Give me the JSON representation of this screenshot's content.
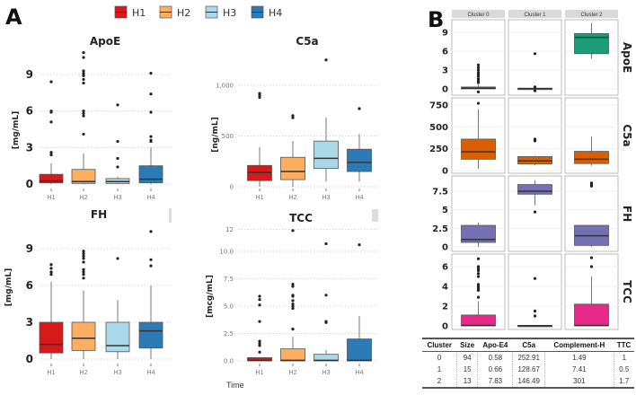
{
  "panel_labels": {
    "a": "A",
    "b": "B"
  },
  "legend": [
    {
      "label": "H1",
      "color": "#d7191c"
    },
    {
      "label": "H2",
      "color": "#fdae61"
    },
    {
      "label": "H3",
      "color": "#abd9e9"
    },
    {
      "label": "H4",
      "color": "#2c7bb6"
    }
  ],
  "x_axis_label": "Time",
  "chart_data": [
    {
      "type": "box",
      "title": "ApoE",
      "ylabel": "[mg/mL]",
      "categories": [
        "H1",
        "H2",
        "H3",
        "H4"
      ],
      "yticks": [
        0,
        3,
        6,
        9
      ],
      "ytick_labels": [
        "0",
        "3",
        "6",
        "9"
      ],
      "ylim": [
        -0.3,
        11
      ],
      "boxes": [
        {
          "q1": 0.1,
          "median": 0.25,
          "q3": 0.8,
          "low": 0,
          "high": 1.7,
          "outliers": [
            2.4,
            2.6,
            5.1,
            5.9,
            6.0,
            8.4
          ]
        },
        {
          "q1": 0.05,
          "median": 0.2,
          "q3": 1.2,
          "low": 0,
          "high": 2.5,
          "outliers": [
            4.1,
            5.6,
            5.8,
            6.0,
            8.3,
            8.6,
            8.9,
            9.1,
            9.3,
            10.4,
            10.8
          ]
        },
        {
          "q1": 0.05,
          "median": 0.2,
          "q3": 0.45,
          "low": 0,
          "high": 0.6,
          "outliers": [
            1.4,
            2.1,
            3.5,
            6.5
          ]
        },
        {
          "q1": 0.1,
          "median": 0.4,
          "q3": 1.5,
          "low": 0,
          "high": 3.0,
          "outliers": [
            3.5,
            3.6,
            3.9,
            5.9,
            7.4,
            9.1
          ]
        }
      ]
    },
    {
      "type": "box",
      "title": "C5a",
      "ylabel": "[ng/mL]",
      "categories": [
        "H1",
        "H2",
        "H3",
        "H4"
      ],
      "yticks": [
        0,
        500,
        1000
      ],
      "ytick_labels": [
        "0",
        "500",
        "1,000"
      ],
      "ylim": [
        -30,
        1300
      ],
      "boxes": [
        {
          "q1": 60,
          "median": 140,
          "q3": 210,
          "low": 0,
          "high": 390,
          "outliers": [
            880,
            900,
            920
          ]
        },
        {
          "q1": 70,
          "median": 150,
          "q3": 290,
          "low": 0,
          "high": 450,
          "outliers": [
            680,
            700
          ]
        },
        {
          "q1": 180,
          "median": 280,
          "q3": 450,
          "low": 50,
          "high": 680,
          "outliers": [
            1250
          ]
        },
        {
          "q1": 150,
          "median": 240,
          "q3": 370,
          "low": 50,
          "high": 520,
          "outliers": [
            770
          ]
        }
      ]
    },
    {
      "type": "box",
      "title": "FH",
      "ylabel": "[mg/mL]",
      "categories": [
        "H1",
        "H2",
        "H3",
        "H4"
      ],
      "yticks": [
        0,
        3,
        6,
        9
      ],
      "ytick_labels": [
        "0",
        "3",
        "6",
        "9"
      ],
      "ylim": [
        -0.3,
        11
      ],
      "boxes": [
        {
          "q1": 0.5,
          "median": 1.2,
          "q3": 3.0,
          "low": 0,
          "high": 6.3,
          "outliers": [
            6.9,
            7.1,
            7.4,
            7.7
          ]
        },
        {
          "q1": 0.7,
          "median": 1.7,
          "q3": 3.0,
          "low": 0,
          "high": 5.6,
          "outliers": [
            6.6,
            6.9,
            7.1,
            7.3,
            7.9,
            8.2,
            8.4,
            8.6,
            8.8
          ]
        },
        {
          "q1": 0.6,
          "median": 1.1,
          "q3": 3.0,
          "low": 0,
          "high": 4.8,
          "outliers": [
            8.2
          ]
        },
        {
          "q1": 0.9,
          "median": 2.3,
          "q3": 3.0,
          "low": 0,
          "high": 6.0,
          "outliers": [
            7.6,
            8.1,
            10.4
          ]
        }
      ]
    },
    {
      "type": "box",
      "title": "TCC",
      "ylabel": "[mcg/mL]",
      "categories": [
        "H1",
        "H2",
        "H3",
        "H4"
      ],
      "yticks": [
        0,
        2.5,
        5,
        7.5,
        10,
        12
      ],
      "ytick_labels": [
        "0.0",
        "2.5",
        "5.0",
        "7.5",
        "10.0",
        "12"
      ],
      "ylim": [
        -0.3,
        12.5
      ],
      "boxes": [
        {
          "q1": 0,
          "median": 0.05,
          "q3": 0.3,
          "low": 0,
          "high": 0.3,
          "outliers": [
            0.8,
            1.4,
            1.6,
            1.8,
            3.6,
            5.1,
            5.6,
            5.9
          ]
        },
        {
          "q1": 0,
          "median": 0.05,
          "q3": 1.1,
          "low": 0,
          "high": 2.2,
          "outliers": [
            2.9,
            4.8,
            5.0,
            5.2,
            5.5,
            5.9,
            6.0,
            6.8,
            7.0,
            11.9
          ]
        },
        {
          "q1": 0,
          "median": 0.05,
          "q3": 0.6,
          "low": 0,
          "high": 1.0,
          "outliers": [
            3.5,
            3.6,
            6.0,
            10.7
          ]
        },
        {
          "q1": 0,
          "median": 0.05,
          "q3": 2.0,
          "low": 0,
          "high": 4.1,
          "outliers": [
            10.6
          ]
        }
      ]
    },
    {
      "type": "box-facet",
      "columns": [
        "Cluster 0",
        "Cluster 1",
        "Cluster 2"
      ],
      "rows": [
        {
          "label": "ApoE",
          "color": "#1b9e77",
          "yticks": [
            0,
            3,
            6,
            9
          ],
          "ytick_labels": [
            "0",
            "3",
            "6",
            "9"
          ],
          "ylim": [
            -0.5,
            11
          ],
          "boxes": [
            {
              "q1": 0,
              "median": 0.1,
              "q3": 0.3,
              "low": 0,
              "high": 0.7,
              "outliers": [
                1.0,
                1.3,
                1.6,
                2.0,
                2.3,
                2.6,
                3.0,
                3.4,
                3.8
              ]
            },
            {
              "q1": 0,
              "median": 0.05,
              "q3": 0.1,
              "low": -0.2,
              "high": 0.2,
              "outliers": [
                -0.3,
                0.3,
                5.6
              ]
            },
            {
              "q1": 5.6,
              "median": 8.2,
              "q3": 8.8,
              "low": 4.8,
              "high": 10.5,
              "outliers": []
            }
          ]
        },
        {
          "label": "C5a",
          "color": "#d95f02",
          "yticks": [
            0,
            250,
            500,
            750
          ],
          "ytick_labels": [
            "0",
            "250",
            "500",
            "750"
          ],
          "ylim": [
            -20,
            950
          ],
          "boxes": [
            {
              "q1": 130,
              "median": 215,
              "q3": 360,
              "low": 20,
              "high": 700,
              "outliers": [
                770,
                900
              ]
            },
            {
              "q1": 75,
              "median": 110,
              "q3": 160,
              "low": 60,
              "high": 170,
              "outliers": [
                340,
                360
              ]
            },
            {
              "q1": 80,
              "median": 130,
              "q3": 220,
              "low": 55,
              "high": 390,
              "outliers": []
            }
          ]
        },
        {
          "label": "FH",
          "color": "#7570b3",
          "yticks": [
            0,
            2.5,
            5,
            7.5
          ],
          "ytick_labels": [
            "0",
            "2.5",
            "5",
            "7.5"
          ],
          "ylim": [
            -0.3,
            9.3
          ],
          "boxes": [
            {
              "q1": 0.6,
              "median": 1.0,
              "q3": 2.9,
              "low": 0,
              "high": 3.3,
              "outliers": []
            },
            {
              "q1": 7.1,
              "median": 7.5,
              "q3": 8.4,
              "low": 5.6,
              "high": 9.0,
              "outliers": [
                4.7
              ]
            },
            {
              "q1": 0.2,
              "median": 1.5,
              "q3": 2.9,
              "low": 0,
              "high": 2.9,
              "outliers": [
                8.2,
                8.4,
                8.6
              ]
            }
          ]
        },
        {
          "label": "TCC",
          "color": "#e7298a",
          "yticks": [
            0,
            2,
            4,
            6
          ],
          "ytick_labels": [
            "0",
            "2",
            "4",
            "6"
          ],
          "ylim": [
            -0.3,
            7.2
          ],
          "boxes": [
            {
              "q1": 0,
              "median": 0.05,
              "q3": 1.1,
              "low": 0,
              "high": 2.5,
              "outliers": [
                2.9,
                3.6,
                3.8,
                4.0,
                4.2,
                5.0,
                5.3,
                5.6,
                5.8,
                6.0,
                6.8
              ]
            },
            {
              "q1": 0,
              "median": 0.02,
              "q3": 0.05,
              "low": 0,
              "high": 0.05,
              "outliers": [
                1.0,
                1.5,
                4.8
              ]
            },
            {
              "q1": 0,
              "median": 0.05,
              "q3": 2.2,
              "low": 0,
              "high": 5.0,
              "outliers": [
                6.0,
                6.9
              ]
            }
          ]
        }
      ]
    }
  ],
  "table": {
    "headers": [
      "Cluster",
      "Size",
      "Apo-E4",
      "C5a",
      "Complement-H",
      "TTC"
    ],
    "rows": [
      [
        "0",
        "94",
        "0.58",
        "252.91",
        "1.49",
        "1"
      ],
      [
        "1",
        "15",
        "0.66",
        "128.67",
        "7.41",
        "0.5"
      ],
      [
        "2",
        "13",
        "7.83",
        "146.49",
        "301",
        "1.7"
      ]
    ]
  }
}
